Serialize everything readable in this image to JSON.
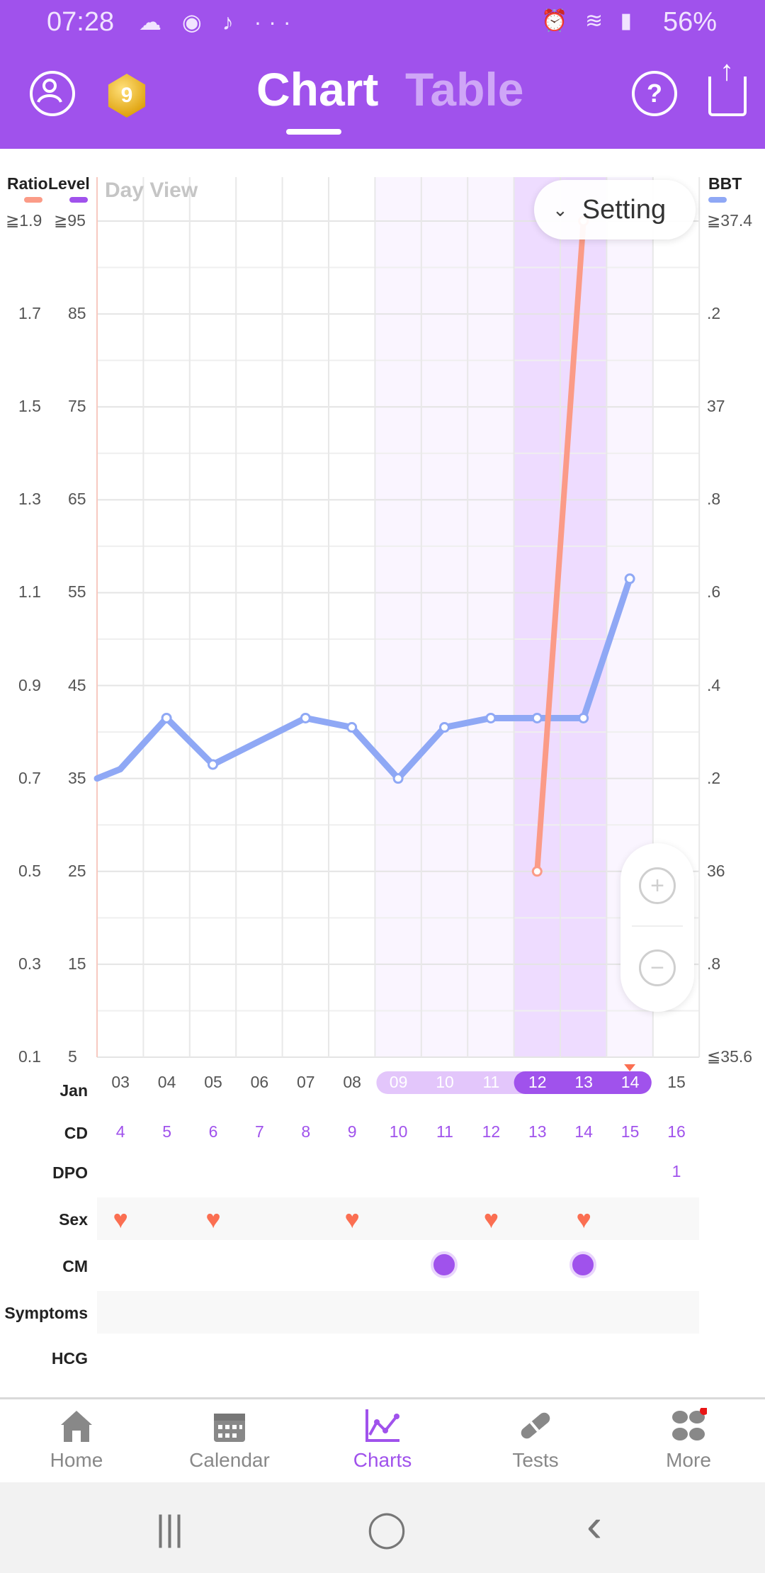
{
  "status_bar": {
    "time": "07:28",
    "left_icons": "☁ ◉ ♪ ···",
    "right_icons": "⏰ ≋ ▮",
    "battery": "56%"
  },
  "header": {
    "tabs": [
      {
        "label": "Chart",
        "active": true
      },
      {
        "label": "Table",
        "active": false
      }
    ],
    "level_badge": "9",
    "icons": [
      "profile-icon",
      "level-badge-icon",
      "help-icon",
      "share-icon"
    ]
  },
  "chart": {
    "left_axis_titles": {
      "ratio": "Ratio",
      "level": "Level"
    },
    "right_axis_title": "BBT",
    "view_label": "Day View",
    "setting_label": "Setting",
    "ratio_ticks": [
      "≧1.9",
      "1.7",
      "1.5",
      "1.3",
      "1.1",
      "0.9",
      "0.7",
      "0.5",
      "0.3",
      "0.1"
    ],
    "level_ticks": [
      "≧95",
      "85",
      "75",
      "65",
      "55",
      "45",
      "35",
      "25",
      "15",
      "5"
    ],
    "bbt_ticks": [
      "≧37.4",
      ".2",
      "37",
      ".8",
      ".6",
      ".4",
      ".2",
      "36",
      ".8",
      "≦35.6"
    ],
    "colors": {
      "ratio": "#fb9b87",
      "level": "#a052ec",
      "bbt": "#8fa8f5"
    },
    "zoom_icons": [
      "zoom-in-icon",
      "zoom-out-icon"
    ]
  },
  "chart_data": {
    "type": "line",
    "x": [
      "03",
      "04",
      "05",
      "06",
      "07",
      "08",
      "09",
      "10",
      "11",
      "12",
      "13",
      "14",
      "15"
    ],
    "series": [
      {
        "name": "BBT",
        "values": [
          36.22,
          36.33,
          36.23,
          null,
          36.33,
          36.31,
          36.2,
          36.31,
          36.33,
          36.33,
          36.33,
          36.63,
          null
        ]
      },
      {
        "name": "Ratio",
        "values": [
          null,
          null,
          null,
          null,
          null,
          null,
          null,
          null,
          null,
          0.5,
          1.9,
          null,
          null
        ]
      }
    ],
    "ylim_left_ratio": [
      0.1,
      1.9
    ],
    "ylim_left_level": [
      5,
      95
    ],
    "ylim_right_bbt": [
      35.6,
      37.4
    ],
    "grid": true
  },
  "rows": {
    "month": "Jan",
    "dates": [
      "03",
      "04",
      "05",
      "06",
      "07",
      "08",
      "09",
      "10",
      "11",
      "12",
      "13",
      "14",
      "15"
    ],
    "cd_label": "CD",
    "cd": [
      "4",
      "5",
      "6",
      "7",
      "8",
      "9",
      "10",
      "11",
      "12",
      "13",
      "14",
      "15",
      "16"
    ],
    "dpo_label": "DPO",
    "dpo_value": "1",
    "sex_label": "Sex",
    "sex_days": [
      "03",
      "05",
      "08",
      "11",
      "13"
    ],
    "cm_label": "CM",
    "cm_days": [
      "10",
      "13"
    ],
    "symptoms_label": "Symptoms",
    "hcg_label": "HCG"
  },
  "bottom_nav": [
    {
      "label": "Home",
      "icon": "home-icon",
      "active": false
    },
    {
      "label": "Calendar",
      "icon": "calendar-icon",
      "active": false
    },
    {
      "label": "Charts",
      "icon": "charts-icon",
      "active": true
    },
    {
      "label": "Tests",
      "icon": "tests-icon",
      "active": false
    },
    {
      "label": "More",
      "icon": "more-icon",
      "active": false
    }
  ],
  "system_nav": {
    "recents": "|||",
    "home": "◯",
    "back": "‹"
  }
}
